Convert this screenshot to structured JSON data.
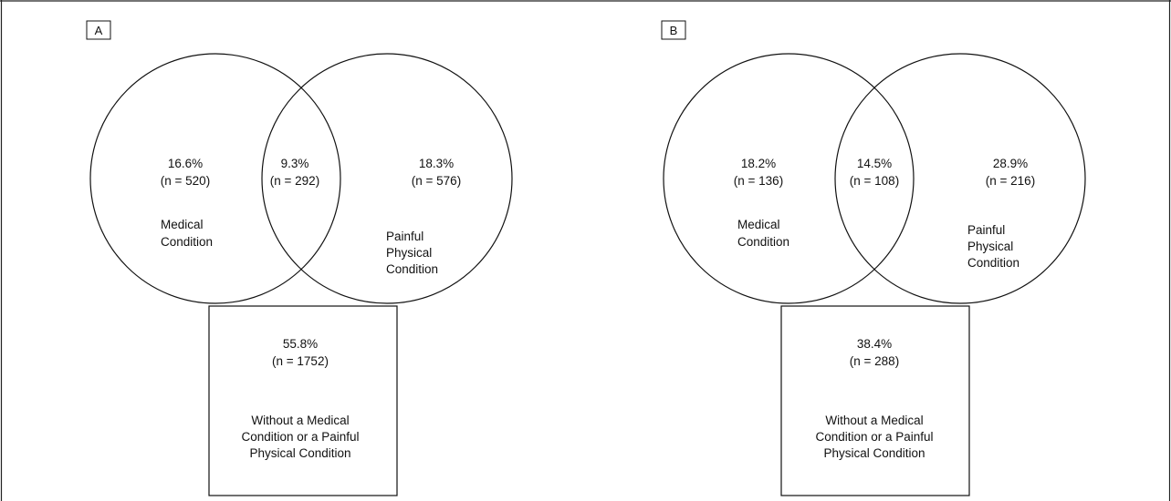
{
  "panels": [
    {
      "id": "A",
      "label": "A",
      "left_circle": {
        "percent": "16.6%",
        "count": "(n = 520)",
        "label_line1": "Medical",
        "label_line2": "Condition"
      },
      "overlap": {
        "percent": "9.3%",
        "count": "(n = 292)"
      },
      "right_circle": {
        "percent": "18.3%",
        "count": "(n = 576)",
        "label_line1": "Painful",
        "label_line2": "Physical",
        "label_line3": "Condition"
      },
      "box": {
        "percent": "55.8%",
        "count": "(n = 1752)",
        "label_line1": "Without a Medical",
        "label_line2": "Condition or a Painful",
        "label_line3": "Physical Condition"
      }
    },
    {
      "id": "B",
      "label": "B",
      "left_circle": {
        "percent": "18.2%",
        "count": "(n = 136)",
        "label_line1": "Medical",
        "label_line2": "Condition"
      },
      "overlap": {
        "percent": "14.5%",
        "count": "(n = 108)"
      },
      "right_circle": {
        "percent": "28.9%",
        "count": "(n = 216)",
        "label_line1": "Painful",
        "label_line2": "Physical",
        "label_line3": "Condition"
      },
      "box": {
        "percent": "38.4%",
        "count": "(n = 288)",
        "label_line1": "Without a Medical",
        "label_line2": "Condition or a Painful",
        "label_line3": "Physical Condition"
      }
    }
  ]
}
